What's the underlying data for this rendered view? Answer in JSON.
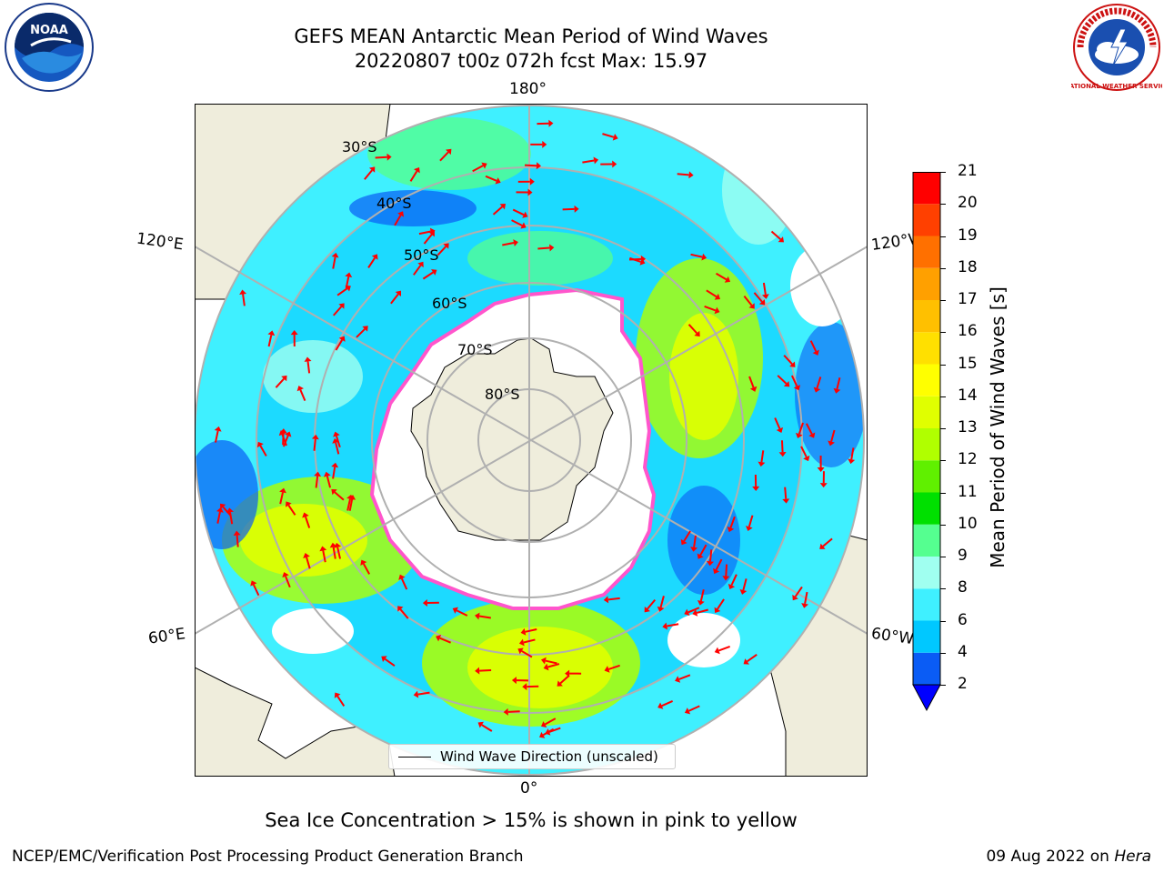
{
  "title": {
    "line1": "GEFS MEAN Antarctic Mean Period of Wind Waves",
    "line2": "20220807 t00z 072h fcst   Max: 15.97"
  },
  "map": {
    "meridian_labels": {
      "top": "180°",
      "bottom": "0°",
      "left_upper": "120°E",
      "left_lower": "60°E",
      "right_upper": "120°W",
      "right_lower": "60°W"
    },
    "latitude_labels": [
      "30°S",
      "40°S",
      "50°S",
      "60°S",
      "70°S",
      "80°S"
    ],
    "legend_label": "Wind Wave Direction (unscaled)",
    "colors": {
      "land": "#efeddc",
      "coast": "#000000",
      "grid": "#b0b0b0",
      "arrow": "#ff0000",
      "ice_edge": "#ff55cc"
    }
  },
  "colorbar": {
    "label": "Mean Period of Wind Waves [s]",
    "ticks": [
      "2",
      "4",
      "6",
      "8",
      "9",
      "10",
      "11",
      "12",
      "13",
      "14",
      "15",
      "16",
      "17",
      "18",
      "19",
      "20",
      "21"
    ],
    "colors": [
      "#0a5cf5",
      "#00c8ff",
      "#3ff0ff",
      "#a0fff0",
      "#55ff90",
      "#00e000",
      "#60f000",
      "#b0ff00",
      "#e0ff00",
      "#ffff00",
      "#ffe000",
      "#ffc000",
      "#ffa000",
      "#ff7000",
      "#ff4000",
      "#ff0000"
    ],
    "extend_color": "#0000ff"
  },
  "footer": {
    "sea_ice_note": "Sea Ice Concentration > 15% is shown in pink to yellow",
    "credit": "NCEP/EMC/Verification Post Processing Product Generation Branch",
    "date": "09 Aug 2022 on",
    "host": "Hera"
  },
  "logos": {
    "noaa_text": "NOAA",
    "nws_text": "NATIONAL WEATHER SERVICE"
  }
}
